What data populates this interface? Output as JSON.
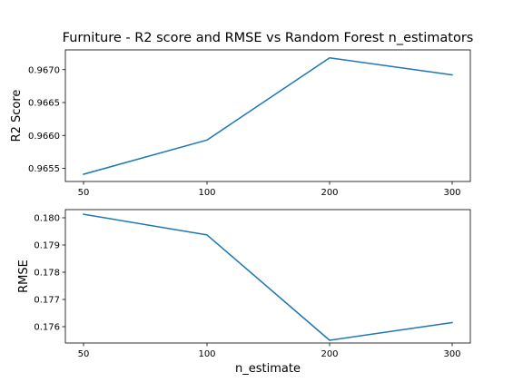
{
  "chart_data": {
    "title": "Furniture - R2 score and RMSE vs Random Forest n_estimators",
    "type": "line",
    "x": [
      50,
      100,
      200,
      300
    ],
    "x_tick_labels": [
      "50",
      "100",
      "200",
      "300"
    ],
    "x_scale": "categorical-equal-spacing",
    "xlabel": "n_estimate",
    "line_color": "#1f77b4",
    "subplots": [
      {
        "ylabel": "R2 Score",
        "values": [
          0.96541,
          0.96593,
          0.96718,
          0.96692
        ],
        "ylim": [
          0.9653,
          0.9673
        ],
        "yticks": [
          0.9655,
          0.966,
          0.9665,
          0.967
        ],
        "ytick_labels": [
          "0.9655",
          "0.9660",
          "0.9665",
          "0.9670"
        ],
        "grid": false
      },
      {
        "ylabel": "RMSE",
        "values": [
          0.18013,
          0.17937,
          0.1755,
          0.17615
        ],
        "ylim": [
          0.1754,
          0.1803
        ],
        "yticks": [
          0.176,
          0.177,
          0.178,
          0.179,
          0.18
        ],
        "ytick_labels": [
          "0.176",
          "0.177",
          "0.178",
          "0.179",
          "0.180"
        ],
        "grid": false
      }
    ]
  }
}
